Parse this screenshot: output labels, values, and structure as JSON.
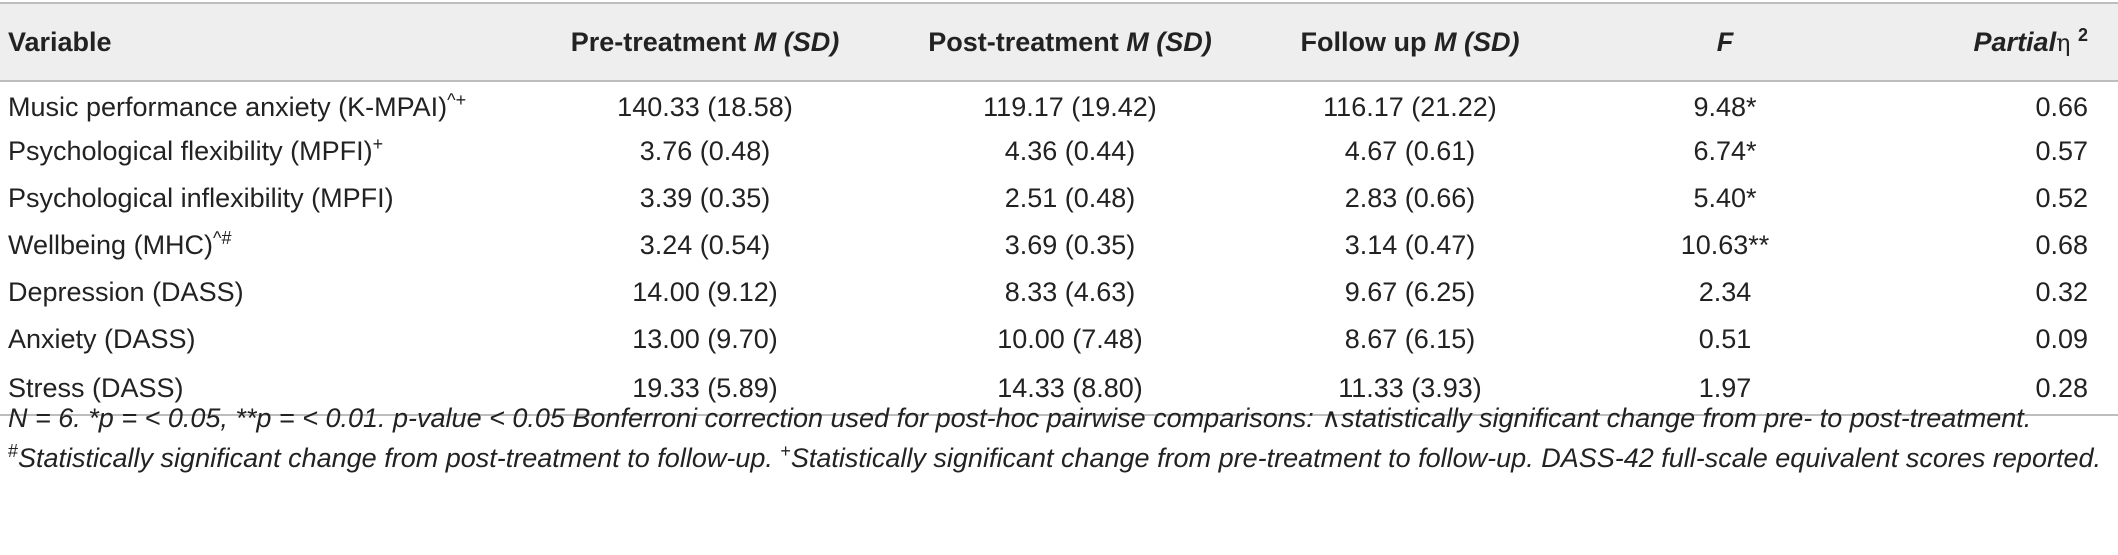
{
  "table": {
    "headers": {
      "variable": "Variable",
      "pre_prefix": "Pre-treatment ",
      "pre_stat": "M (SD)",
      "post_prefix": "Post-treatment ",
      "post_stat": "M (SD)",
      "follow_prefix": "Follow up ",
      "follow_stat": "M (SD)",
      "f": "F",
      "eta_prefix": "Partial",
      "eta_symbol": "η",
      "eta_sup": "2"
    },
    "rows": [
      {
        "variable": "Music performance anxiety (K-MPAI)",
        "marks": "^+",
        "pre": "140.33 (18.58)",
        "post": "119.17 (19.42)",
        "follow": "116.17 (21.22)",
        "f": "9.48*",
        "eta": "0.66"
      },
      {
        "variable": "Psychological flexibility (MPFI)",
        "marks": "+",
        "pre": "3.76 (0.48)",
        "post": "4.36 (0.44)",
        "follow": "4.67 (0.61)",
        "f": "6.74*",
        "eta": "0.57"
      },
      {
        "variable": "Psychological inflexibility (MPFI)",
        "marks": "",
        "pre": "3.39 (0.35)",
        "post": "2.51 (0.48)",
        "follow": "2.83 (0.66)",
        "f": "5.40*",
        "eta": "0.52"
      },
      {
        "variable": "Wellbeing (MHC)",
        "marks": "^#",
        "pre": "3.24 (0.54)",
        "post": "3.69 (0.35)",
        "follow": "3.14 (0.47)",
        "f": "10.63**",
        "eta": "0.68"
      },
      {
        "variable": "Depression (DASS)",
        "marks": "",
        "pre": "14.00 (9.12)",
        "post": "8.33 (4.63)",
        "follow": "9.67 (6.25)",
        "f": "2.34",
        "eta": "0.32"
      },
      {
        "variable": "Anxiety (DASS)",
        "marks": "",
        "pre": "13.00 (9.70)",
        "post": "10.00 (7.48)",
        "follow": "8.67 (6.15)",
        "f": "0.51",
        "eta": "0.09"
      },
      {
        "variable": "Stress (DASS)",
        "marks": "",
        "pre": "19.33 (5.89)",
        "post": "14.33 (8.80)",
        "follow": "11.33 (3.93)",
        "f": "1.97",
        "eta": "0.28"
      }
    ]
  },
  "note": {
    "part1": "N = 6. *p = < 0.05, **p = < 0.01. p-value < 0.05 Bonferroni correction used for post-hoc pairwise comparisons: ∧statistically significant change from pre- to post-treatment. ",
    "hash": "#",
    "part2": "Statistically significant change from post-treatment to follow-up. ",
    "plus": "+",
    "part3": "Statistically significant change from pre-treatment to follow-up. DASS-42 full-scale equivalent scores reported."
  }
}
